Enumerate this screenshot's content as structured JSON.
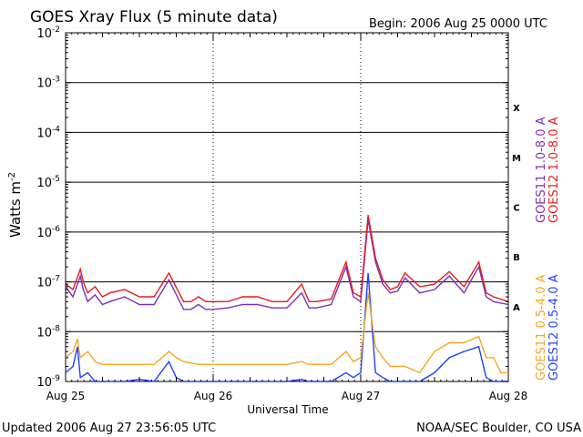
{
  "chart_data": {
    "type": "line",
    "title": "GOES Xray Flux (5 minute data)",
    "begin": "Begin:  2006 Aug 25 0000 UTC",
    "ylabel": "Watts m",
    "ylabel_sup": "-2",
    "xlabel": "Universal Time",
    "footer_left": "Updated 2006 Aug 27 23:56:05 UTC",
    "footer_right": "NOAA/SEC Boulder, CO USA",
    "y_scale": "log",
    "ylim": [
      1e-09,
      0.01
    ],
    "xlim": [
      0,
      3
    ],
    "x_tick_labels": [
      "Aug 25",
      "Aug 26",
      "Aug 27",
      "Aug 28"
    ],
    "y_tick_labels": [
      {
        "base": "10",
        "exp": "-9"
      },
      {
        "base": "10",
        "exp": "-8"
      },
      {
        "base": "10",
        "exp": "-7"
      },
      {
        "base": "10",
        "exp": "-6"
      },
      {
        "base": "10",
        "exp": "-5"
      },
      {
        "base": "10",
        "exp": "-4"
      },
      {
        "base": "10",
        "exp": "-3"
      },
      {
        "base": "10",
        "exp": "-2"
      }
    ],
    "flare_classes": [
      {
        "label": "A",
        "exp": -8
      },
      {
        "label": "B",
        "exp": -7
      },
      {
        "label": "C",
        "exp": -6
      },
      {
        "label": "M",
        "exp": -5
      },
      {
        "label": "X",
        "exp": -4
      }
    ],
    "legend": [
      {
        "label": "GOES11 1.0-8.0 A",
        "color": "#7b2fbf"
      },
      {
        "label": "GOES12 1.0-8.0 A",
        "color": "#e41a1c"
      },
      {
        "label": "GOES11 0.5-4.0 A",
        "color": "#f5a623"
      },
      {
        "label": "GOES12 0.5-4.0 A",
        "color": "#1f3fff"
      }
    ],
    "colors": {
      "goes11_long": "#7b2fbf",
      "goes12_long": "#e41a1c",
      "goes11_short": "#f5a623",
      "goes12_short": "#1f3fff"
    },
    "series": [
      {
        "name": "GOES12 1.0-8.0 A",
        "x": [
          0,
          0.05,
          0.1,
          0.12,
          0.15,
          0.2,
          0.25,
          0.3,
          0.4,
          0.5,
          0.6,
          0.7,
          0.8,
          0.85,
          0.9,
          0.95,
          1.0,
          1.1,
          1.2,
          1.3,
          1.4,
          1.5,
          1.6,
          1.65,
          1.7,
          1.8,
          1.9,
          1.95,
          2.0,
          2.05,
          2.1,
          2.15,
          2.2,
          2.25,
          2.3,
          2.4,
          2.5,
          2.6,
          2.7,
          2.8,
          2.85,
          2.9,
          3.0
        ],
        "y": [
          9e-08,
          7e-08,
          1.8e-07,
          1e-07,
          6e-08,
          8e-08,
          5e-08,
          6e-08,
          7e-08,
          5e-08,
          5e-08,
          1.5e-07,
          4e-08,
          4e-08,
          5e-08,
          4e-08,
          4e-08,
          4e-08,
          5e-08,
          5e-08,
          4e-08,
          4e-08,
          9e-08,
          4e-08,
          4e-08,
          4.5e-08,
          2.5e-07,
          6e-08,
          5e-08,
          2.2e-06,
          3e-07,
          1.1e-07,
          7e-08,
          8e-08,
          1.5e-07,
          8e-08,
          9e-08,
          1.6e-07,
          8e-08,
          2.5e-07,
          6e-08,
          5e-08,
          4e-08
        ]
      },
      {
        "name": "GOES11 1.0-8.0 A",
        "x": [
          0,
          0.05,
          0.1,
          0.12,
          0.15,
          0.2,
          0.25,
          0.3,
          0.4,
          0.5,
          0.6,
          0.7,
          0.8,
          0.85,
          0.9,
          0.95,
          1.0,
          1.1,
          1.2,
          1.3,
          1.4,
          1.5,
          1.6,
          1.65,
          1.7,
          1.8,
          1.9,
          1.95,
          2.0,
          2.05,
          2.1,
          2.15,
          2.2,
          2.25,
          2.3,
          2.4,
          2.5,
          2.6,
          2.7,
          2.8,
          2.85,
          2.9,
          3.0
        ],
        "y": [
          8e-08,
          5e-08,
          1.3e-07,
          7e-08,
          4e-08,
          5.5e-08,
          3.5e-08,
          4e-08,
          5e-08,
          3.5e-08,
          3.5e-08,
          1.1e-07,
          2.8e-08,
          2.8e-08,
          3.5e-08,
          2.8e-08,
          2.8e-08,
          3e-08,
          3.5e-08,
          3.5e-08,
          3e-08,
          3e-08,
          6e-08,
          3e-08,
          3e-08,
          3.5e-08,
          2e-07,
          5e-08,
          4e-08,
          1.8e-06,
          2.5e-07,
          9e-08,
          6e-08,
          6.5e-08,
          1.2e-07,
          6e-08,
          7e-08,
          1.3e-07,
          6e-08,
          2e-07,
          5e-08,
          4e-08,
          3.5e-08
        ]
      },
      {
        "name": "GOES11 0.5-4.0 A",
        "x": [
          0,
          0.05,
          0.08,
          0.1,
          0.15,
          0.2,
          0.25,
          0.3,
          0.4,
          0.5,
          0.6,
          0.7,
          0.75,
          0.8,
          0.9,
          1.0,
          1.1,
          1.2,
          1.3,
          1.4,
          1.5,
          1.6,
          1.65,
          1.7,
          1.8,
          1.9,
          1.95,
          2.0,
          2.05,
          2.1,
          2.15,
          2.2,
          2.3,
          2.4,
          2.5,
          2.6,
          2.7,
          2.8,
          2.85,
          2.9,
          2.95,
          3.0
        ],
        "y": [
          3e-09,
          4e-09,
          7e-09,
          3e-09,
          4e-09,
          2.5e-09,
          2.2e-09,
          2.2e-09,
          2.2e-09,
          2.2e-09,
          2.2e-09,
          4e-09,
          3e-09,
          2.5e-09,
          2.2e-09,
          2.2e-09,
          2.2e-09,
          2.2e-09,
          2.2e-09,
          2.2e-09,
          2.2e-09,
          2.5e-09,
          2.2e-09,
          2.2e-09,
          2.2e-09,
          4e-09,
          2.5e-09,
          3e-09,
          6e-08,
          5e-09,
          3e-09,
          2e-09,
          2e-09,
          1.5e-09,
          4e-09,
          6e-09,
          6e-09,
          8e-09,
          3e-09,
          3e-09,
          1.5e-09,
          1.5e-09
        ]
      },
      {
        "name": "GOES12 0.5-4.0 A",
        "x": [
          0,
          0.05,
          0.08,
          0.1,
          0.15,
          0.2,
          0.25,
          0.3,
          0.4,
          0.5,
          0.6,
          0.7,
          0.75,
          0.8,
          0.9,
          1.0,
          1.1,
          1.2,
          1.3,
          1.4,
          1.5,
          1.6,
          1.65,
          1.7,
          1.8,
          1.9,
          1.95,
          2.0,
          2.05,
          2.1,
          2.15,
          2.2,
          2.3,
          2.4,
          2.5,
          2.6,
          2.7,
          2.8,
          2.85,
          2.9,
          2.95,
          3.0
        ],
        "y": [
          1.5e-09,
          2e-09,
          5e-09,
          1.2e-09,
          1.5e-09,
          1e-09,
          1e-09,
          1e-09,
          1e-09,
          1.1e-09,
          1e-09,
          2.5e-09,
          1.2e-09,
          1e-09,
          1e-09,
          1e-09,
          1e-09,
          1e-09,
          1e-09,
          1e-09,
          1e-09,
          1.1e-09,
          1e-09,
          1e-09,
          1e-09,
          1.5e-09,
          1.2e-09,
          1.5e-09,
          1.5e-07,
          1.5e-09,
          1.2e-09,
          1e-09,
          1e-09,
          1e-09,
          1.5e-09,
          3e-09,
          4e-09,
          5e-09,
          1.2e-09,
          1e-09,
          1e-09,
          1e-09
        ]
      }
    ]
  }
}
